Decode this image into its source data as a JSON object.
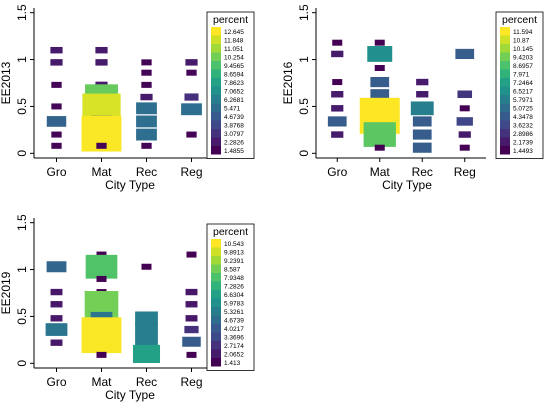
{
  "chart_data": [
    {
      "type": "heatmap",
      "panel": "EE2013",
      "ylabel": "EE2013",
      "xlabel": "City Type",
      "categories": [
        "Gro",
        "Mat",
        "Rec",
        "Reg"
      ],
      "yticks": [
        0,
        0.5,
        1,
        1.5
      ],
      "ylim": [
        -0.05,
        1.55
      ],
      "legend_title": "percent",
      "legend_labels": [
        "12.645",
        "11.848",
        "11.051",
        "10.254",
        "9.4565",
        "8.6594",
        "7.8623",
        "7.0652",
        "6.2681",
        "5.471",
        "4.6739",
        "3.8768",
        "3.0797",
        "2.2826",
        "1.4855"
      ],
      "cells": [
        {
          "cat": "Gro",
          "y": 1.1,
          "value": 2.3
        },
        {
          "cat": "Gro",
          "y": 0.97,
          "value": 2.3
        },
        {
          "cat": "Gro",
          "y": 0.73,
          "value": 1.6
        },
        {
          "cat": "Gro",
          "y": 0.5,
          "value": 1.6
        },
        {
          "cat": "Gro",
          "y": 0.34,
          "value": 5.0
        },
        {
          "cat": "Gro",
          "y": 0.2,
          "value": 1.6
        },
        {
          "cat": "Gro",
          "y": 0.08,
          "value": 1.6
        },
        {
          "cat": "Mat",
          "y": 1.1,
          "value": 2.3
        },
        {
          "cat": "Mat",
          "y": 0.97,
          "value": 2.3
        },
        {
          "cat": "Mat",
          "y": 0.73,
          "value": 2.3
        },
        {
          "cat": "Mat",
          "y": 0.6,
          "value": 10.0
        },
        {
          "cat": "Mat",
          "y": 0.46,
          "value": 12.0
        },
        {
          "cat": "Mat",
          "y": 0.34,
          "value": 5.5
        },
        {
          "cat": "Mat",
          "y": 0.21,
          "value": 12.6
        },
        {
          "cat": "Mat",
          "y": 0.08,
          "value": 1.6
        },
        {
          "cat": "Rec",
          "y": 0.97,
          "value": 1.6
        },
        {
          "cat": "Rec",
          "y": 0.86,
          "value": 1.6
        },
        {
          "cat": "Rec",
          "y": 0.73,
          "value": 1.6
        },
        {
          "cat": "Rec",
          "y": 0.6,
          "value": 2.3
        },
        {
          "cat": "Rec",
          "y": 0.48,
          "value": 5.5
        },
        {
          "cat": "Rec",
          "y": 0.34,
          "value": 5.5
        },
        {
          "cat": "Rec",
          "y": 0.2,
          "value": 5.5
        },
        {
          "cat": "Rec",
          "y": 0.08,
          "value": 1.6
        },
        {
          "cat": "Reg",
          "y": 0.97,
          "value": 2.3
        },
        {
          "cat": "Reg",
          "y": 0.86,
          "value": 1.6
        },
        {
          "cat": "Reg",
          "y": 0.6,
          "value": 3.0
        },
        {
          "cat": "Reg",
          "y": 0.47,
          "value": 5.5
        },
        {
          "cat": "Reg",
          "y": 0.2,
          "value": 1.6
        }
      ]
    },
    {
      "type": "heatmap",
      "panel": "EE2016",
      "ylabel": "EE2016",
      "xlabel": "City Type",
      "categories": [
        "Gro",
        "Mat",
        "Rec",
        "Reg"
      ],
      "yticks": [
        0,
        0.5,
        1,
        1.5
      ],
      "ylim": [
        -0.05,
        1.55
      ],
      "legend_title": "percent",
      "legend_labels": [
        "11.594",
        "10.87",
        "10.145",
        "9.4203",
        "8.6957",
        "7.971",
        "7.2464",
        "6.5217",
        "5.7971",
        "5.0725",
        "4.3478",
        "3.6232",
        "2.8986",
        "2.1739",
        "1.4493"
      ],
      "cells": [
        {
          "cat": "Gro",
          "y": 1.18,
          "value": 1.4
        },
        {
          "cat": "Gro",
          "y": 1.06,
          "value": 2.2
        },
        {
          "cat": "Gro",
          "y": 0.76,
          "value": 1.4
        },
        {
          "cat": "Gro",
          "y": 0.63,
          "value": 2.2
        },
        {
          "cat": "Gro",
          "y": 0.48,
          "value": 2.2
        },
        {
          "cat": "Gro",
          "y": 0.34,
          "value": 4.4
        },
        {
          "cat": "Gro",
          "y": 0.2,
          "value": 2.2
        },
        {
          "cat": "Mat",
          "y": 1.18,
          "value": 1.4
        },
        {
          "cat": "Mat",
          "y": 1.06,
          "value": 6.5
        },
        {
          "cat": "Mat",
          "y": 0.91,
          "value": 1.4
        },
        {
          "cat": "Mat",
          "y": 0.76,
          "value": 4.4
        },
        {
          "cat": "Mat",
          "y": 0.63,
          "value": 4.4
        },
        {
          "cat": "Mat",
          "y": 0.4,
          "value": 11.6
        },
        {
          "cat": "Mat",
          "y": 0.2,
          "value": 9.0
        },
        {
          "cat": "Mat",
          "y": 0.06,
          "value": 1.4
        },
        {
          "cat": "Rec",
          "y": 0.76,
          "value": 2.2
        },
        {
          "cat": "Rec",
          "y": 0.63,
          "value": 2.2
        },
        {
          "cat": "Rec",
          "y": 0.48,
          "value": 5.8
        },
        {
          "cat": "Rec",
          "y": 0.34,
          "value": 4.4
        },
        {
          "cat": "Rec",
          "y": 0.2,
          "value": 4.4
        },
        {
          "cat": "Rec",
          "y": 0.06,
          "value": 4.4
        },
        {
          "cat": "Reg",
          "y": 1.06,
          "value": 4.4
        },
        {
          "cat": "Reg",
          "y": 0.63,
          "value": 3.0
        },
        {
          "cat": "Reg",
          "y": 0.48,
          "value": 1.4
        },
        {
          "cat": "Reg",
          "y": 0.34,
          "value": 3.6
        },
        {
          "cat": "Reg",
          "y": 0.2,
          "value": 2.2
        },
        {
          "cat": "Reg",
          "y": 0.06,
          "value": 1.4
        }
      ]
    },
    {
      "type": "heatmap",
      "panel": "EE2019",
      "ylabel": "EE2019",
      "xlabel": "City Type",
      "categories": [
        "Gro",
        "Mat",
        "Rec",
        "Reg"
      ],
      "yticks": [
        0,
        0.5,
        1,
        1.5
      ],
      "ylim": [
        -0.05,
        1.55
      ],
      "legend_title": "percent",
      "legend_labels": [
        "10.543",
        "9.8913",
        "9.2391",
        "8.587",
        "7.9348",
        "7.2826",
        "6.6304",
        "5.9783",
        "5.3261",
        "4.6739",
        "4.0217",
        "3.3696",
        "2.7174",
        "2.0652",
        "1.413"
      ],
      "cells": [
        {
          "cat": "Gro",
          "y": 1.03,
          "value": 4.4
        },
        {
          "cat": "Gro",
          "y": 0.76,
          "value": 2.0
        },
        {
          "cat": "Gro",
          "y": 0.63,
          "value": 2.0
        },
        {
          "cat": "Gro",
          "y": 0.48,
          "value": 2.0
        },
        {
          "cat": "Gro",
          "y": 0.36,
          "value": 5.0
        },
        {
          "cat": "Gro",
          "y": 0.22,
          "value": 2.0
        },
        {
          "cat": "Mat",
          "y": 1.16,
          "value": 1.4
        },
        {
          "cat": "Mat",
          "y": 1.03,
          "value": 8.0
        },
        {
          "cat": "Mat",
          "y": 0.9,
          "value": 1.4
        },
        {
          "cat": "Mat",
          "y": 0.76,
          "value": 1.4
        },
        {
          "cat": "Mat",
          "y": 0.63,
          "value": 8.6
        },
        {
          "cat": "Mat",
          "y": 0.48,
          "value": 5.0
        },
        {
          "cat": "Mat",
          "y": 0.3,
          "value": 10.5
        },
        {
          "cat": "Mat",
          "y": 0.09,
          "value": 1.4
        },
        {
          "cat": "Rec",
          "y": 1.03,
          "value": 1.4
        },
        {
          "cat": "Rec",
          "y": 0.48,
          "value": 5.3
        },
        {
          "cat": "Rec",
          "y": 0.36,
          "value": 5.3
        },
        {
          "cat": "Rec",
          "y": 0.23,
          "value": 5.3
        },
        {
          "cat": "Rec",
          "y": 0.1,
          "value": 6.6
        },
        {
          "cat": "Reg",
          "y": 1.16,
          "value": 1.4
        },
        {
          "cat": "Reg",
          "y": 0.76,
          "value": 2.0
        },
        {
          "cat": "Reg",
          "y": 0.63,
          "value": 2.0
        },
        {
          "cat": "Reg",
          "y": 0.48,
          "value": 2.0
        },
        {
          "cat": "Reg",
          "y": 0.36,
          "value": 2.7
        },
        {
          "cat": "Reg",
          "y": 0.23,
          "value": 4.0
        },
        {
          "cat": "Reg",
          "y": 0.09,
          "value": 1.4
        }
      ]
    }
  ],
  "colors": {
    "viridis": [
      "#440154",
      "#482475",
      "#414487",
      "#355f8d",
      "#2a788e",
      "#21918c",
      "#22a884",
      "#44bf70",
      "#7ad151",
      "#bddf26",
      "#fde725"
    ]
  }
}
